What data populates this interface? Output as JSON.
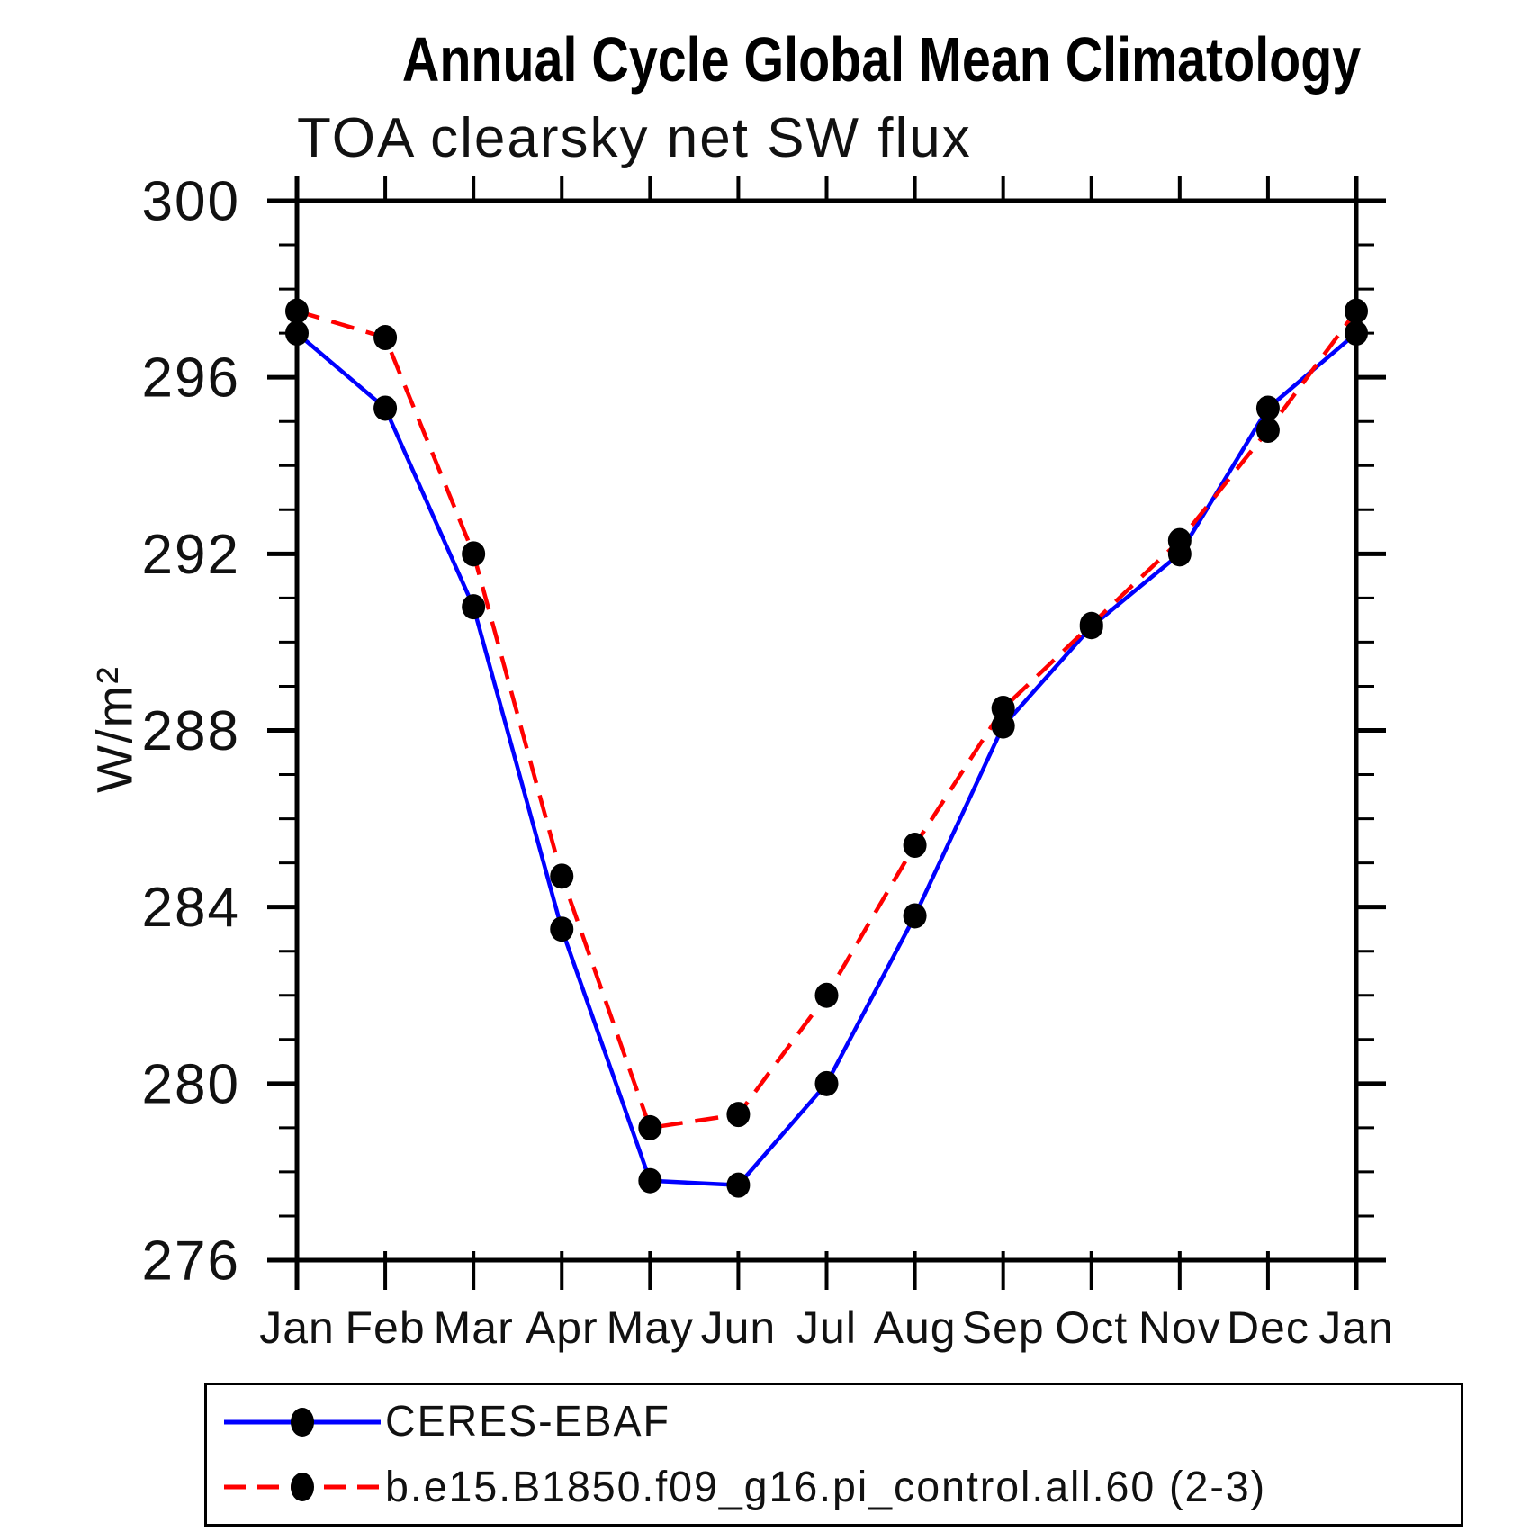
{
  "title": "Annual Cycle Global Mean Climatology",
  "chart_data": {
    "type": "line",
    "title": "Annual Cycle Global Mean Climatology",
    "subtitle": "TOA clearsky net SW flux",
    "ylabel": "W/m²",
    "xlabel": "",
    "ylim": [
      276,
      300
    ],
    "yticks_major": [
      276,
      280,
      284,
      288,
      292,
      296,
      300
    ],
    "ytick_minor_interval": 1,
    "grid": false,
    "legend_position": "bottom",
    "marker_color": "#000000",
    "categories": [
      "Jan",
      "Feb",
      "Mar",
      "Apr",
      "May",
      "Jun",
      "Jul",
      "Aug",
      "Sep",
      "Oct",
      "Nov",
      "Dec",
      "Jan"
    ],
    "series": [
      {
        "name": "CERES-EBAF",
        "color": "#0000ff",
        "style": "solid",
        "values": [
          297.0,
          295.3,
          290.8,
          283.5,
          277.8,
          277.7,
          280.0,
          283.8,
          288.1,
          290.35,
          292.0,
          295.3,
          297.0
        ]
      },
      {
        "name": "b.e15.B1850.f09_g16.pi_control.all.60 (2-3)",
        "color": "#ff0000",
        "style": "dashed",
        "values": [
          297.5,
          296.9,
          292.0,
          284.7,
          279.0,
          279.3,
          282.0,
          285.4,
          288.5,
          290.4,
          292.3,
          294.8,
          297.5
        ]
      }
    ]
  }
}
